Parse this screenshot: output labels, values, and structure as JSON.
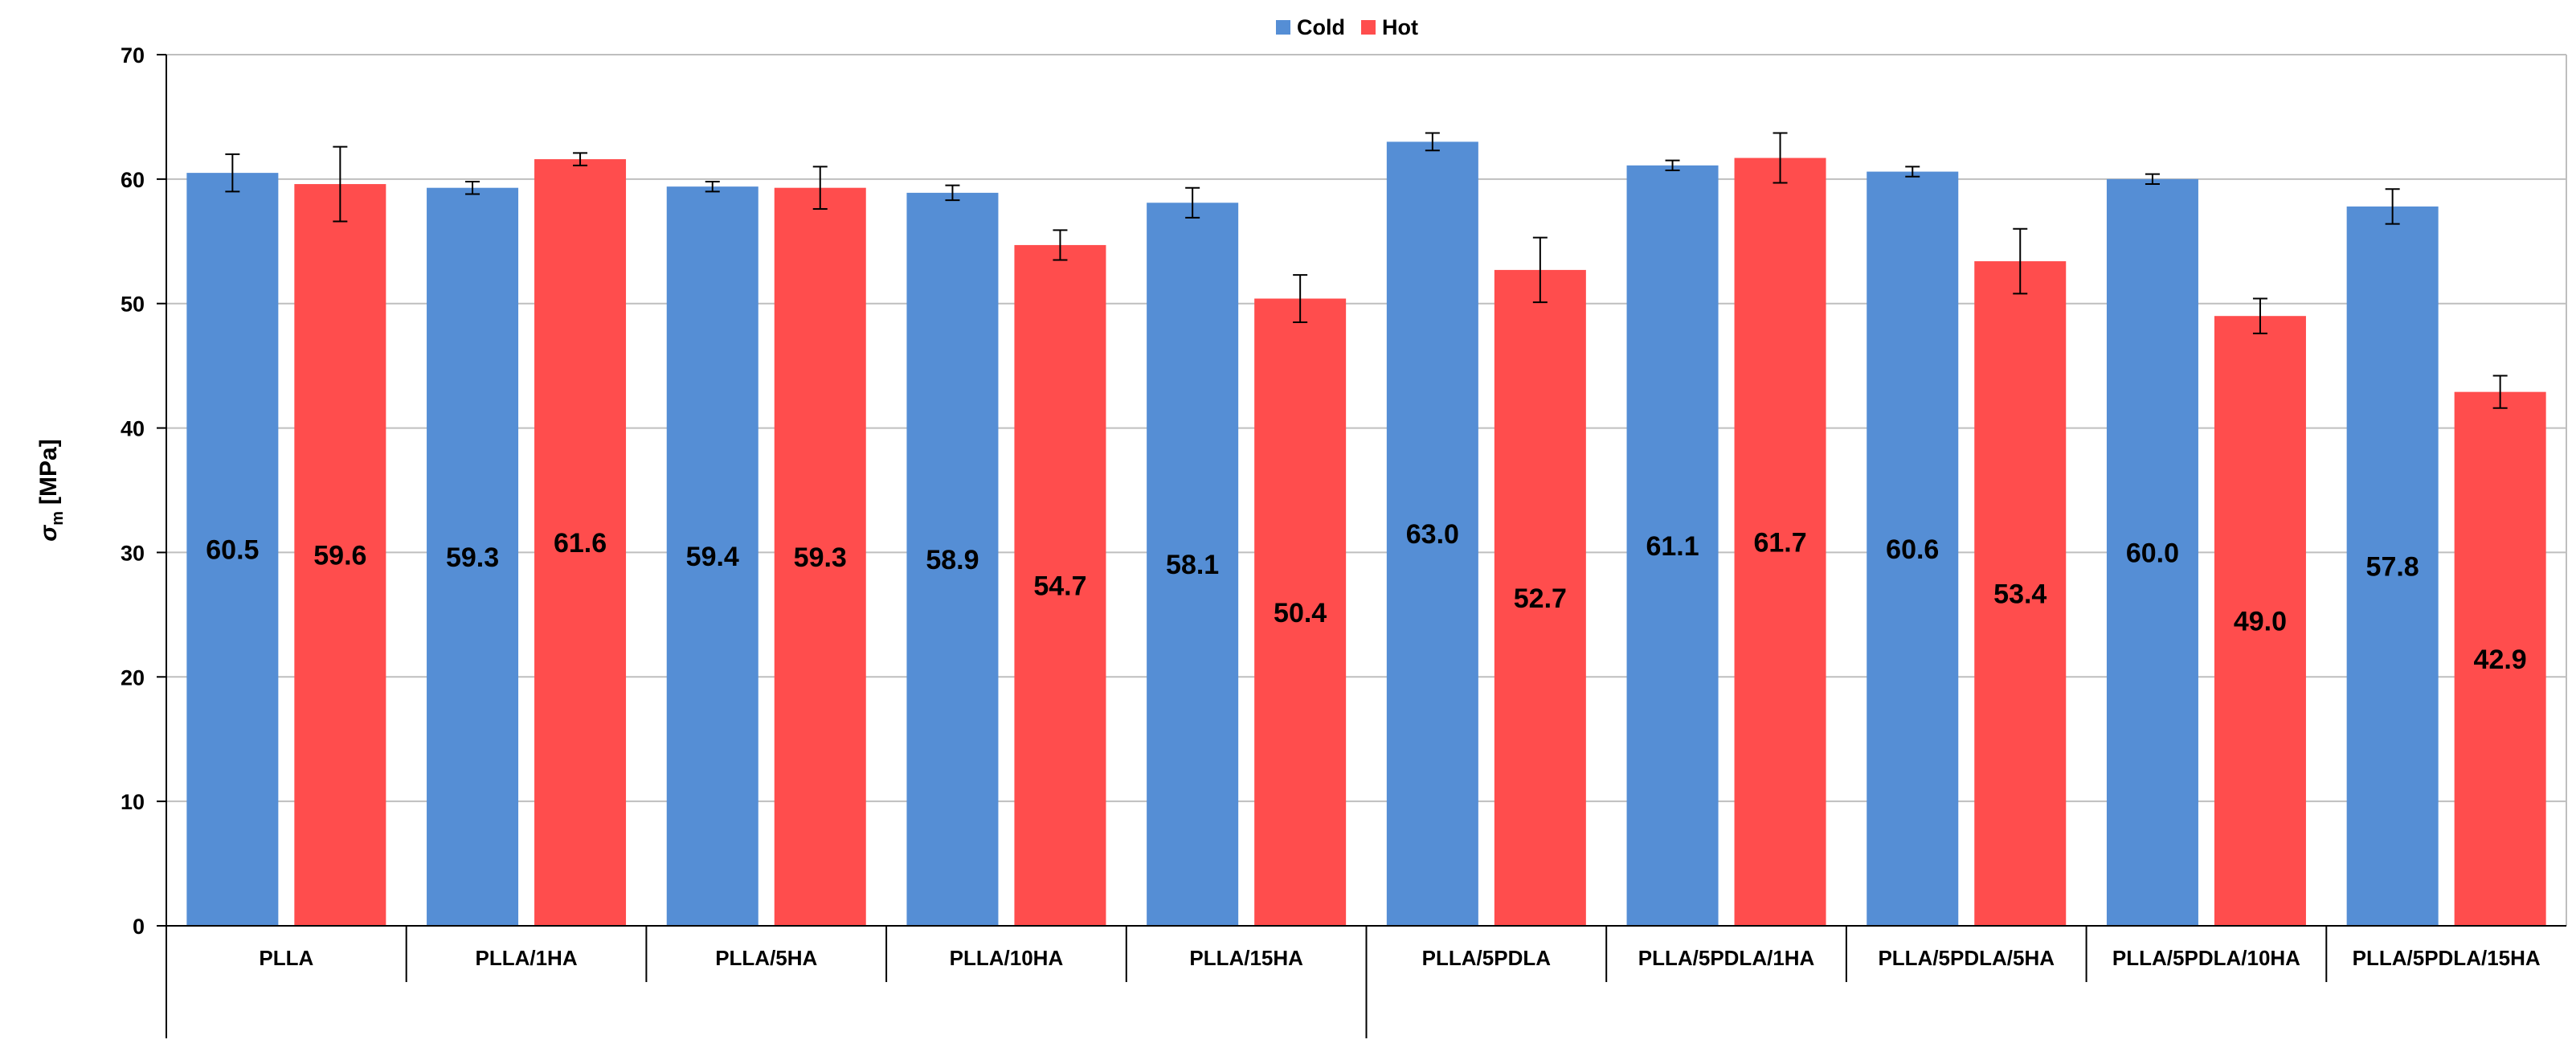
{
  "chart_data": {
    "type": "bar",
    "title": "",
    "xlabel": "",
    "ylabel_symbol": "σ",
    "ylabel_subscript": "m",
    "ylabel_unit": "[MPa]",
    "ylim": [
      0,
      70
    ],
    "yticks": [
      0,
      10,
      20,
      30,
      40,
      50,
      60,
      70
    ],
    "grid": true,
    "legend_position": "top-center",
    "categories": [
      "PLLA",
      "PLLA/1HA",
      "PLLA/5HA",
      "PLLA/10HA",
      "PLLA/15HA",
      "PLLA/5PDLA",
      "PLLA/5PDLA/1HA",
      "PLLA/5PDLA/5HA",
      "PLLA/5PDLA/10HA",
      "PLLA/5PDLA/15HA"
    ],
    "series": [
      {
        "name": "Cold",
        "color": "#558ED5",
        "values": [
          60.5,
          59.3,
          59.4,
          58.9,
          58.1,
          63.0,
          61.1,
          60.6,
          60.0,
          57.8
        ],
        "errors": [
          1.5,
          0.5,
          0.4,
          0.6,
          1.2,
          0.7,
          0.4,
          0.4,
          0.4,
          1.4
        ],
        "labels": [
          "60.5",
          "59.3",
          "59.4",
          "58.9",
          "58.1",
          "63.0",
          "61.1",
          "60.6",
          "60.0",
          "57.8"
        ]
      },
      {
        "name": "Hot",
        "color": "#FF4D4D",
        "values": [
          59.6,
          61.6,
          59.3,
          54.7,
          50.4,
          52.7,
          61.7,
          53.4,
          49.0,
          42.9
        ],
        "errors": [
          3.0,
          0.5,
          1.7,
          1.2,
          1.9,
          2.6,
          2.0,
          2.6,
          1.4,
          1.3
        ],
        "labels": [
          "59.6",
          "61.6",
          "59.3",
          "54.7",
          "50.4",
          "52.7",
          "61.7",
          "53.4",
          "49.0",
          "42.9"
        ]
      }
    ]
  }
}
